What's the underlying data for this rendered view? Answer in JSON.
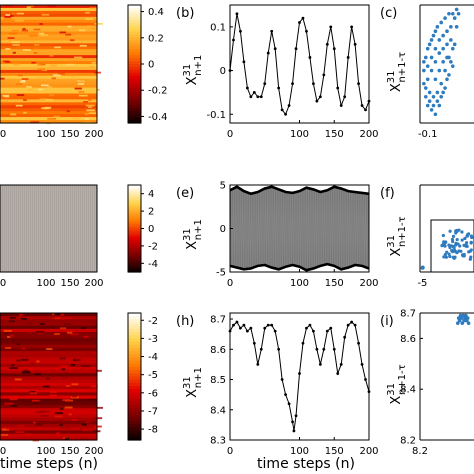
{
  "chart_data": [
    {
      "id": "a",
      "type": "heatmap",
      "panel_label": "",
      "xticks": [
        "0",
        "100",
        "150",
        "200"
      ],
      "colorbar_ticks": [
        "0.4",
        "0.2",
        "0",
        "-0.2",
        "-0.4"
      ],
      "colorbar_range": [
        -0.45,
        0.45
      ],
      "colorbar_colors": [
        "#000000",
        "#7a0000",
        "#e00000",
        "#ff7a00",
        "#ffd24a",
        "#ffffff"
      ]
    },
    {
      "id": "b",
      "type": "line",
      "panel_label": "(b)",
      "ylabel_base": "X",
      "ylabel_sup": "31",
      "ylabel_sub": "n+1",
      "xlim": [
        0,
        200
      ],
      "ylim": [
        -0.12,
        0.15
      ],
      "xticks": [
        "0",
        "100",
        "150",
        "200"
      ],
      "xtick_values": [
        0,
        100,
        150,
        200
      ],
      "yticks": [
        "0.1",
        "0",
        "-0.1"
      ],
      "ytick_values": [
        0.1,
        0,
        -0.1
      ],
      "x": [
        0,
        5,
        10,
        15,
        20,
        25,
        30,
        35,
        40,
        45,
        50,
        55,
        60,
        65,
        70,
        75,
        80,
        85,
        90,
        95,
        100,
        105,
        110,
        115,
        120,
        125,
        130,
        135,
        140,
        145,
        150,
        155,
        160,
        165,
        170,
        175,
        180,
        185,
        190,
        195,
        200
      ],
      "y": [
        0.0,
        0.07,
        0.13,
        0.09,
        0.02,
        -0.04,
        -0.06,
        -0.05,
        -0.06,
        -0.06,
        -0.03,
        0.04,
        0.09,
        0.05,
        -0.04,
        -0.09,
        -0.1,
        -0.08,
        -0.03,
        0.05,
        0.11,
        0.12,
        0.09,
        0.03,
        -0.03,
        -0.07,
        -0.06,
        -0.01,
        0.06,
        0.1,
        0.05,
        -0.04,
        -0.08,
        -0.06,
        0.03,
        0.1,
        0.06,
        -0.03,
        -0.08,
        -0.09,
        -0.07
      ]
    },
    {
      "id": "c",
      "type": "scatter",
      "panel_label": "(c)",
      "ylabel_base": "X",
      "ylabel_sup": "31",
      "ylabel_sub": "n+1-τ",
      "xticks": [
        "-0.1"
      ],
      "xtick_values": [
        -0.1
      ],
      "xlim": [
        -0.14,
        0.14
      ],
      "ylim": [
        -0.12,
        0.15
      ],
      "points": [
        [
          -0.1,
          -0.08
        ],
        [
          -0.08,
          -0.09
        ],
        [
          -0.06,
          -0.1
        ],
        [
          -0.04,
          -0.08
        ],
        [
          -0.02,
          -0.05
        ],
        [
          0.0,
          -0.02
        ],
        [
          0.02,
          0.02
        ],
        [
          0.04,
          0.06
        ],
        [
          0.05,
          0.1
        ],
        [
          0.06,
          0.13
        ],
        [
          -0.11,
          -0.06
        ],
        [
          -0.12,
          -0.03
        ],
        [
          -0.12,
          0.0
        ],
        [
          -0.11,
          0.03
        ],
        [
          -0.09,
          0.06
        ],
        [
          -0.07,
          0.08
        ],
        [
          -0.05,
          0.1
        ],
        [
          -0.03,
          0.11
        ],
        [
          -0.01,
          0.12
        ],
        [
          0.01,
          0.13
        ],
        [
          -0.09,
          -0.05
        ],
        [
          -0.07,
          -0.06
        ],
        [
          -0.05,
          -0.05
        ],
        [
          -0.03,
          -0.03
        ],
        [
          -0.01,
          0.0
        ],
        [
          0.01,
          0.03
        ],
        [
          0.03,
          0.05
        ],
        [
          -0.1,
          -0.02
        ],
        [
          -0.1,
          0.01
        ],
        [
          -0.08,
          0.03
        ],
        [
          -0.06,
          0.05
        ],
        [
          -0.04,
          0.07
        ],
        [
          -0.02,
          0.08
        ],
        [
          0.0,
          0.09
        ],
        [
          0.02,
          0.1
        ],
        [
          -0.08,
          0.0
        ],
        [
          -0.06,
          0.02
        ],
        [
          -0.04,
          0.04
        ],
        [
          -0.02,
          0.05
        ],
        [
          0.0,
          0.06
        ],
        [
          0.04,
          0.12
        ],
        [
          0.05,
          0.14
        ],
        [
          0.03,
          0.13
        ],
        [
          -0.06,
          -0.02
        ],
        [
          -0.04,
          0.0
        ],
        [
          -0.02,
          0.02
        ],
        [
          0.0,
          0.03
        ],
        [
          0.02,
          0.07
        ],
        [
          -0.09,
          -0.07
        ],
        [
          -0.07,
          -0.08
        ],
        [
          -0.05,
          -0.07
        ],
        [
          -0.03,
          -0.06
        ],
        [
          -0.01,
          -0.04
        ],
        [
          0.01,
          -0.01
        ],
        [
          0.03,
          0.01
        ],
        [
          -0.11,
          -0.04
        ],
        [
          -0.12,
          0.02
        ],
        [
          -0.1,
          0.05
        ],
        [
          -0.08,
          0.07
        ],
        [
          -0.06,
          0.09
        ]
      ]
    },
    {
      "id": "d",
      "type": "heatmap",
      "panel_label": "",
      "xticks": [
        "0",
        "100",
        "150",
        "200"
      ],
      "colorbar_ticks": [
        "4",
        "2",
        "0",
        "-2",
        "-4"
      ],
      "colorbar_range": [
        -5,
        5
      ],
      "colorbar_colors": [
        "#000000",
        "#7a0000",
        "#e00000",
        "#ff7a00",
        "#ffd24a",
        "#ffffff"
      ]
    },
    {
      "id": "e",
      "type": "line",
      "panel_label": "(e)",
      "ylabel_base": "X",
      "ylabel_sup": "31",
      "ylabel_sub": "n+1",
      "xlim": [
        0,
        200
      ],
      "ylim": [
        -5,
        5
      ],
      "xticks": [
        "0",
        "100",
        "150",
        "200"
      ],
      "xtick_values": [
        0,
        100,
        150,
        200
      ],
      "yticks": [
        "5",
        "0",
        "-5"
      ],
      "ytick_values": [
        5,
        0,
        -5
      ],
      "x": [
        0,
        10,
        20,
        30,
        40,
        50,
        60,
        70,
        80,
        90,
        100,
        110,
        120,
        130,
        140,
        150,
        160,
        170,
        180,
        190,
        200
      ],
      "upper": [
        4.4,
        4.8,
        4.3,
        4.0,
        4.2,
        4.6,
        4.8,
        4.5,
        4.2,
        4.1,
        4.3,
        4.7,
        4.5,
        4.2,
        4.4,
        4.8,
        4.6,
        4.3,
        4.2,
        4.1,
        4.0
      ],
      "lower": [
        -4.3,
        -4.5,
        -4.7,
        -4.6,
        -4.3,
        -4.2,
        -4.5,
        -4.7,
        -4.4,
        -4.2,
        -4.4,
        -4.8,
        -4.6,
        -4.3,
        -4.1,
        -4.3,
        -4.7,
        -4.5,
        -4.2,
        -4.3,
        -4.6
      ]
    },
    {
      "id": "f",
      "type": "scatter",
      "panel_label": "(f)",
      "ylabel_base": "X",
      "ylabel_sup": "31",
      "ylabel_sub": "n+1-τ",
      "xticks": [
        "-5"
      ],
      "xtick_values": [
        -5
      ],
      "xlim": [
        -5.5,
        5.5
      ],
      "ylim": [
        -5.5,
        5.5
      ],
      "points": [
        [
          -5,
          -5
        ],
        [
          -4.9,
          -4.95
        ],
        [
          -4.95,
          -4.9
        ]
      ]
    },
    {
      "id": "g",
      "type": "heatmap",
      "panel_label": "",
      "xticks": [
        "0",
        "100",
        "150",
        "200"
      ],
      "colorbar_ticks": [
        "-2",
        "-3",
        "-4",
        "-5",
        "-6",
        "-7",
        "-8"
      ],
      "colorbar_range": [
        -8.6,
        -1.6
      ],
      "colorbar_colors": [
        "#000000",
        "#7a0000",
        "#e00000",
        "#ff7a00",
        "#ffd24a",
        "#ffffff"
      ]
    },
    {
      "id": "h",
      "type": "line",
      "panel_label": "(h)",
      "ylabel_base": "X",
      "ylabel_sup": "31",
      "ylabel_sub": "n+1",
      "xlim": [
        0,
        200
      ],
      "ylim": [
        8.3,
        8.72
      ],
      "xticks": [
        "0",
        "100",
        "150",
        "200"
      ],
      "xtick_values": [
        0,
        100,
        150,
        200
      ],
      "yticks": [
        "8.7",
        "8.6",
        "8.5",
        "8.4",
        "8.3"
      ],
      "ytick_values": [
        8.7,
        8.6,
        8.5,
        8.4,
        8.3
      ],
      "x": [
        0,
        5,
        10,
        15,
        20,
        25,
        30,
        35,
        40,
        45,
        50,
        55,
        60,
        65,
        70,
        75,
        80,
        85,
        90,
        92,
        95,
        100,
        105,
        110,
        115,
        120,
        125,
        130,
        135,
        140,
        145,
        150,
        155,
        160,
        165,
        170,
        175,
        180,
        185,
        190,
        195,
        200
      ],
      "y": [
        8.66,
        8.68,
        8.69,
        8.67,
        8.68,
        8.66,
        8.67,
        8.62,
        8.55,
        8.6,
        8.67,
        8.68,
        8.68,
        8.66,
        8.6,
        8.5,
        8.45,
        8.42,
        8.36,
        8.33,
        8.38,
        8.52,
        8.62,
        8.67,
        8.68,
        8.66,
        8.6,
        8.55,
        8.6,
        8.66,
        8.67,
        8.6,
        8.52,
        8.55,
        8.64,
        8.68,
        8.69,
        8.68,
        8.62,
        8.55,
        8.5,
        8.46
      ]
    },
    {
      "id": "i",
      "type": "scatter",
      "panel_label": "(i)",
      "ylabel_base": "X",
      "ylabel_sup": "31",
      "ylabel_sub": "n+1-τ",
      "xticks": [
        "8.2"
      ],
      "xtick_values": [
        8.2
      ],
      "xlim": [
        8.2,
        8.8
      ],
      "ylim": [
        8.2,
        8.7
      ],
      "yticks": [
        "8.7",
        "8.6",
        "8.4",
        "8.2"
      ],
      "ytick_values": [
        8.7,
        8.6,
        8.4,
        8.2
      ],
      "points": [
        [
          8.62,
          8.66
        ],
        [
          8.64,
          8.67
        ],
        [
          8.66,
          8.68
        ],
        [
          8.68,
          8.69
        ],
        [
          8.7,
          8.68
        ],
        [
          8.72,
          8.67
        ],
        [
          8.74,
          8.66
        ],
        [
          8.65,
          8.69
        ],
        [
          8.69,
          8.67
        ],
        [
          8.71,
          8.69
        ],
        [
          8.63,
          8.68
        ],
        [
          8.67,
          8.66
        ],
        [
          8.73,
          8.68
        ]
      ]
    }
  ],
  "xlabel_left": "time steps (n)",
  "xlabel_mid": "time steps (n)"
}
